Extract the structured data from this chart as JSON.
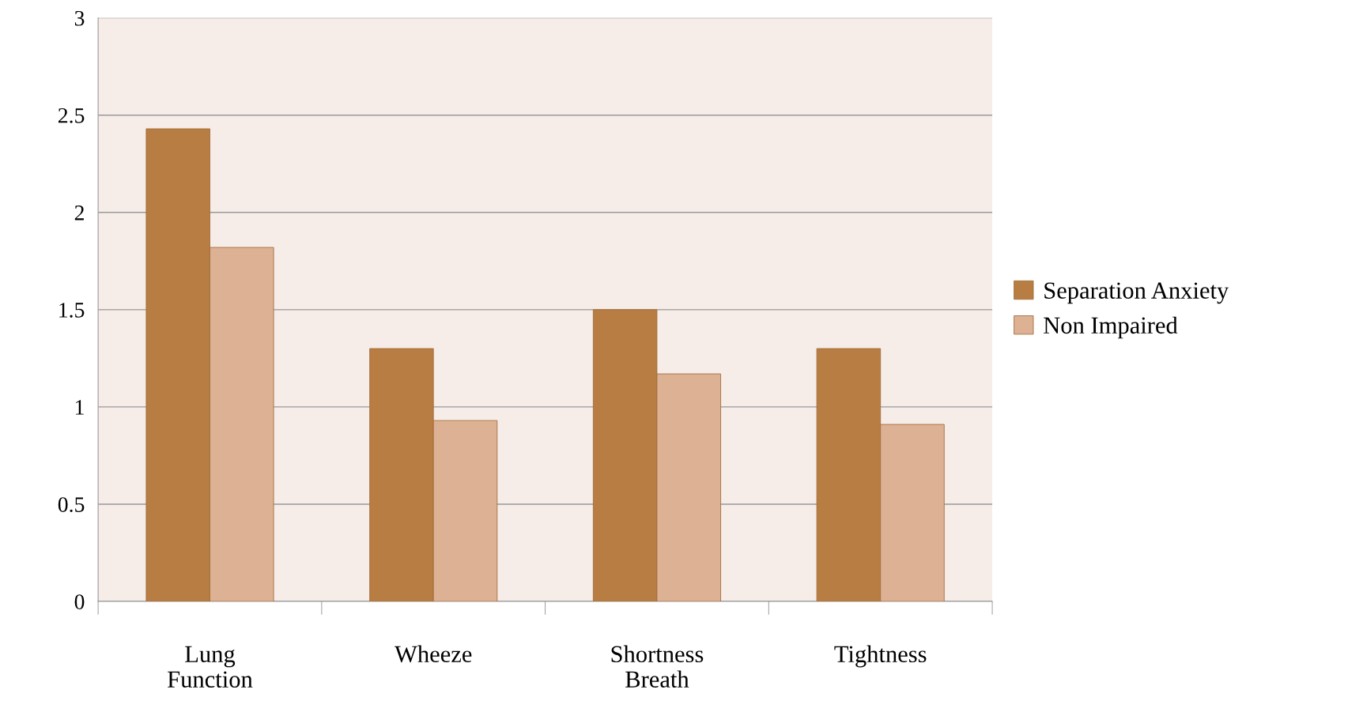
{
  "chart_data": {
    "type": "bar",
    "categories": [
      "Lung\nFunction",
      "Wheeze",
      "Shortness\nBreath",
      "Tightness"
    ],
    "series": [
      {
        "name": "Separation Anxiety",
        "color": "#b87d42",
        "values": [
          2.43,
          1.3,
          1.5,
          1.3
        ]
      },
      {
        "name": "Non Impaired",
        "color": "#ddb193",
        "values": [
          1.82,
          0.93,
          1.17,
          0.91
        ]
      }
    ],
    "ylim": [
      0,
      3
    ],
    "yticks": [
      0,
      0.5,
      1,
      1.5,
      2,
      2.5,
      3
    ],
    "grid": "y",
    "legend": "right"
  }
}
